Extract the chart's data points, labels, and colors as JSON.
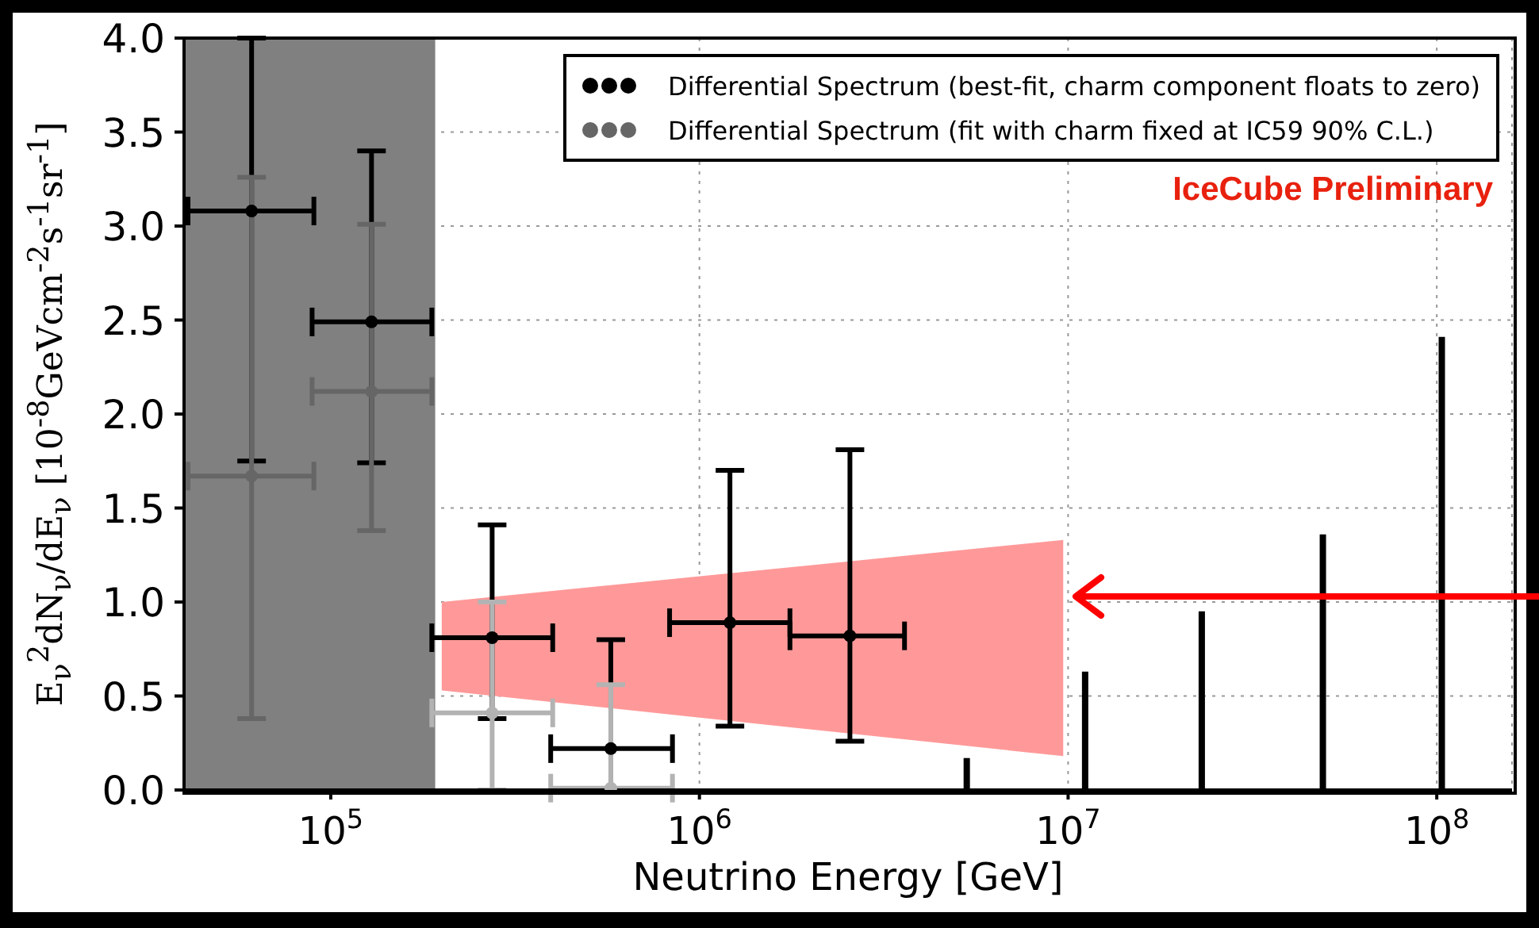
{
  "chart_data": {
    "type": "scatter",
    "xlabel": "Neutrino Energy [GeV]",
    "ylabel": "E$_{ν}$$^{2}$dN$_{ν}$/dE$_{ν}$  [10$^{-8}$GeVcm$^{-2}$s$^{-1}$sr$^{-1}$]",
    "log": "x",
    "xlim": [
      40000,
      160000000
    ],
    "xticks": [
      {
        "value": 100000,
        "label": "10$^{5}$"
      },
      {
        "value": 1000000,
        "label": "10$^{6}$"
      },
      {
        "value": 10000000,
        "label": "10$^{7}$"
      },
      {
        "value": 100000000,
        "label": "10$^{8}$"
      }
    ],
    "ylim": [
      0,
      4
    ],
    "yticks": [
      {
        "value": 0,
        "label": "0.0"
      },
      0.5,
      {
        "value": 1,
        "label": "1.0"
      },
      1.5,
      {
        "value": 2,
        "label": "2.0"
      },
      2.5,
      {
        "value": 3,
        "label": "3.0"
      },
      3.5,
      {
        "value": 4,
        "label": "4.0"
      }
    ],
    "grid": true,
    "legend": "top right",
    "marker": "circle",
    "bands": [
      {
        "axis": "x",
        "from": 40000,
        "to": 192000,
        "color": "#808080"
      }
    ],
    "annotations": [
      "IceCube Preliminary"
    ],
    "series": [
      {
        "name": "Differential Spectrum (best-fit, charm component floats to zero)",
        "color": "#000000",
        "x": [
          61000,
          129000,
          274000,
          575000,
          1210000,
          2560000
        ],
        "values": [
          3.08,
          2.49,
          0.81,
          0.22,
          0.89,
          0.82
        ],
        "errors": [
          [
            1.75,
            4.0
          ],
          [
            1.74,
            3.4
          ],
          [
            0.38,
            1.41
          ],
          [
            0,
            0.8
          ],
          [
            0.34,
            1.7
          ],
          [
            0.26,
            1.81
          ]
        ],
        "xerrors": [
          [
            41000,
            90000
          ],
          [
            89000,
            188000
          ],
          [
            188000,
            400000
          ],
          [
            395000,
            845000
          ],
          [
            830000,
            1760000
          ],
          [
            1760000,
            3600000
          ]
        ]
      },
      {
        "name": "Differential Spectrum (fit with charm fixed at IC59 90% C.L.)",
        "color": "#666666",
        "colors": [
          "#666666",
          "#666666",
          "#b3b3b3",
          "#b3b3b3"
        ],
        "x": [
          61000,
          129000,
          274000,
          575000
        ],
        "values": [
          1.67,
          2.12,
          0.41,
          0.01
        ],
        "errors": [
          [
            0.38,
            3.26
          ],
          [
            1.38,
            3.01
          ],
          [
            0,
            1.0
          ],
          [
            0,
            0.56
          ]
        ],
        "xerrors": [
          [
            41000,
            90000
          ],
          [
            89000,
            188000
          ],
          [
            188000,
            400000
          ],
          [
            395000,
            845000
          ]
        ]
      },
      {
        "type": "bar",
        "color": "#000000",
        "x": [
          5300000,
          11100000,
          23000000,
          49000000,
          103000000
        ],
        "values": [
          0.17,
          0.63,
          0.95,
          1.36,
          2.41
        ]
      },
      {
        "type": "area",
        "color": "#ff9999",
        "x": [
          200000,
          9700000
        ],
        "values": [
          null,
          null
        ],
        "lower": [
          0.53,
          0.18
        ],
        "upper": [
          1.0,
          1.33
        ]
      }
    ]
  }
}
